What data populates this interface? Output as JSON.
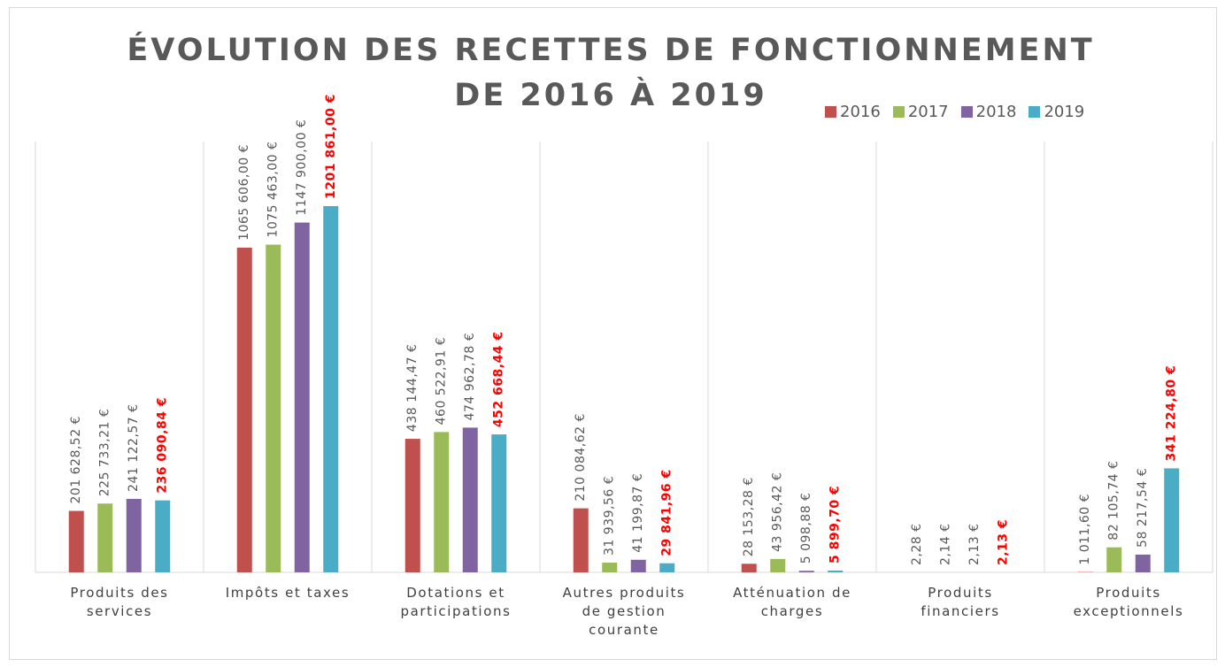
{
  "chart_data": {
    "type": "bar",
    "title": "ÉVOLUTION DES RECETTES DE FONCTIONNEMENT DE 2016 À 2019",
    "categories": [
      "Produits des services",
      "Impôts et taxes",
      "Dotations et participations",
      "Autres produits de gestion courante",
      "Atténuation de charges",
      "Produits financiers",
      "Produits exceptionnels"
    ],
    "series": [
      {
        "name": "2016",
        "color": "#c0504d",
        "values": [
          201628.52,
          1065606.0,
          438144.47,
          210084.62,
          28153.28,
          2.28,
          1011.6
        ],
        "value_labels": [
          "201 628,52 €",
          "1065 606,00 €",
          "438 144,47 €",
          "210 084,62 €",
          "28 153,28 €",
          "2,28 €",
          "1 011,60 €"
        ]
      },
      {
        "name": "2017",
        "color": "#9bbb59",
        "values": [
          225733.21,
          1075463.0,
          460522.91,
          31939.56,
          43956.42,
          2.14,
          82105.74
        ],
        "value_labels": [
          "225 733,21 €",
          "1075 463,00 €",
          "460 522,91 €",
          "31 939,56 €",
          "43 956,42 €",
          "2,14 €",
          "82 105,74 €"
        ]
      },
      {
        "name": "2018",
        "color": "#8064a2",
        "values": [
          241122.57,
          1147900.0,
          474962.78,
          41199.87,
          5098.88,
          2.13,
          58217.54
        ],
        "value_labels": [
          "241 122,57 €",
          "1147 900,00 €",
          "474 962,78 €",
          "41 199,87 €",
          "5 098,88 €",
          "2,13 €",
          "58 217,54 €"
        ]
      },
      {
        "name": "2019",
        "color": "#4bacc6",
        "label_color": "#ff0000",
        "label_bold": true,
        "values": [
          236090.84,
          1201861.0,
          452668.44,
          29841.96,
          5899.7,
          2.13,
          341224.8
        ],
        "value_labels": [
          "236 090,84 €",
          "1201 861,00 €",
          "452 668,44 €",
          "29 841,96 €",
          "5 899,70 €",
          "2,13 €",
          "341 224,80 €"
        ]
      }
    ]
  }
}
